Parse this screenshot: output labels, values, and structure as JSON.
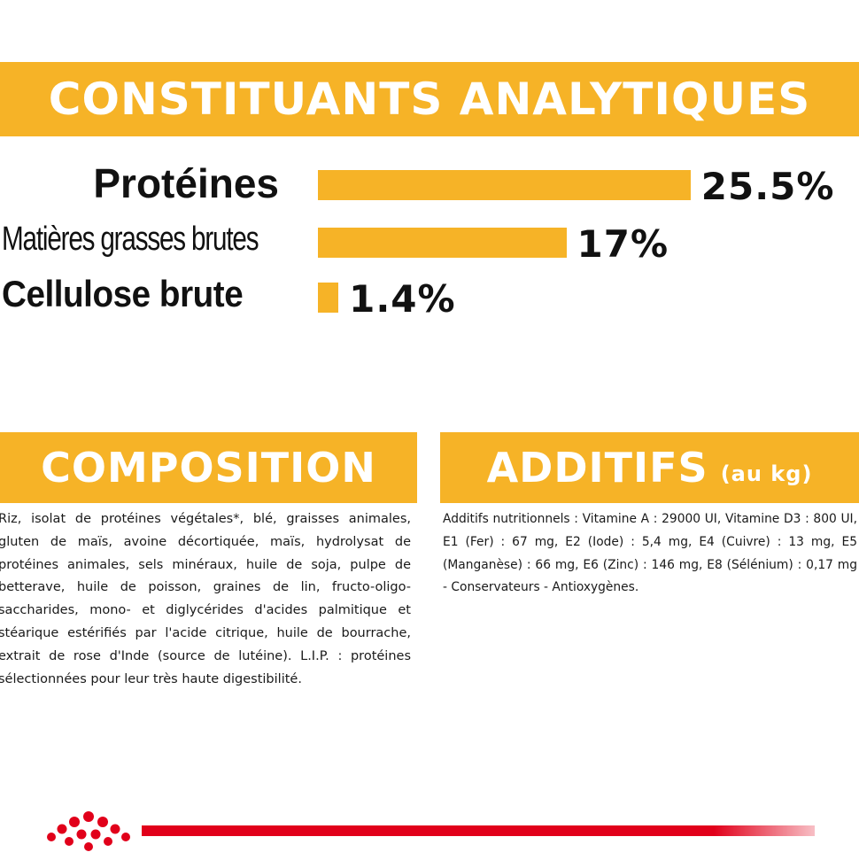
{
  "analytiques": {
    "title": "CONSTITUANTS ANALYTIQUES",
    "items": [
      {
        "label": "Protéines",
        "value": 25.5,
        "display": "25.5%"
      },
      {
        "label": "Matières grasses brutes",
        "value": 17,
        "display": "17%"
      },
      {
        "label": "Cellulose brute",
        "value": 1.4,
        "display": "1.4%"
      }
    ]
  },
  "composition": {
    "title": "COMPOSITION",
    "text": "Riz, isolat de protéines végétales*, blé, graisses animales, gluten de maïs, avoine décortiquée, maïs, hydrolysat de protéines animales, sels minéraux, huile de soja, pulpe de betterave, huile de poisson, graines de lin, fructo-oligo-saccharides, mono- et diglycérides d'acides palmitique et stéarique estérifiés par l'acide citrique, huile de bourrache, extrait de rose d'Inde (source de lutéine). L.I.P. : protéines sélectionnées pour leur très haute digestibilité."
  },
  "additifs": {
    "title": "ADDITIFS",
    "subtitle": "(au kg)",
    "text": "Additifs nutritionnels : Vitamine A : 29000 UI, Vitamine D3 : 800 UI, E1 (Fer) : 67 mg, E2 (Iode) : 5,4 mg, E4 (Cuivre) : 13 mg, E5 (Manganèse) : 66 mg, E6 (Zinc) : 146 mg, E8 (Sélénium) : 0,17 mg - Conservateurs - Antioxygènes."
  },
  "colors": {
    "accent": "#f6b327",
    "brand_red": "#e1001a",
    "text": "#111111"
  },
  "footer": {
    "logo_icon": "crown-logo-icon"
  }
}
